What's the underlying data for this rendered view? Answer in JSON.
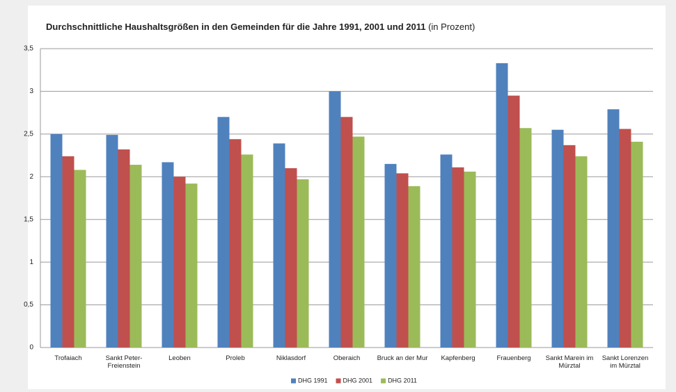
{
  "chart_data": {
    "type": "bar",
    "title": "Durchschnittliche Haushaltsgrößen in den Gemeinden  für die Jahre 1991, 2001 und 2011",
    "subtitle": "(in Prozent)",
    "categories": [
      "Trofaiach",
      "Sankt Peter-Freienstein",
      "Leoben",
      "Proleb",
      "Niklasdorf",
      "Oberaich",
      "Bruck an der Mur",
      "Kapfenberg",
      "Frauenberg",
      "Sankt Marein im Mürztal",
      "Sankt Lorenzen im Mürztal"
    ],
    "series": [
      {
        "name": "DHG 1991",
        "color": "#4f81bd",
        "values": [
          2.5,
          2.49,
          2.17,
          2.7,
          2.39,
          3.0,
          2.15,
          2.26,
          3.33,
          2.55,
          2.79
        ]
      },
      {
        "name": "DHG 2001",
        "color": "#c0504d",
        "values": [
          2.24,
          2.32,
          2.0,
          2.44,
          2.1,
          2.7,
          2.04,
          2.11,
          2.95,
          2.37,
          2.56
        ]
      },
      {
        "name": "DHG 2011",
        "color": "#9bbb59",
        "values": [
          2.08,
          2.14,
          1.92,
          2.26,
          1.97,
          2.47,
          1.89,
          2.06,
          2.57,
          2.24,
          2.41
        ]
      }
    ],
    "ylim": [
      0,
      3.5
    ],
    "yticks": [
      0,
      {
        "value": 0.5,
        "label": "0,5"
      },
      1,
      {
        "value": 1.5,
        "label": "1,5"
      },
      2,
      {
        "value": 2.5,
        "label": "2,5"
      },
      3,
      {
        "value": 3.5,
        "label": "3,5"
      }
    ],
    "grid": true,
    "legend": "bottom"
  }
}
